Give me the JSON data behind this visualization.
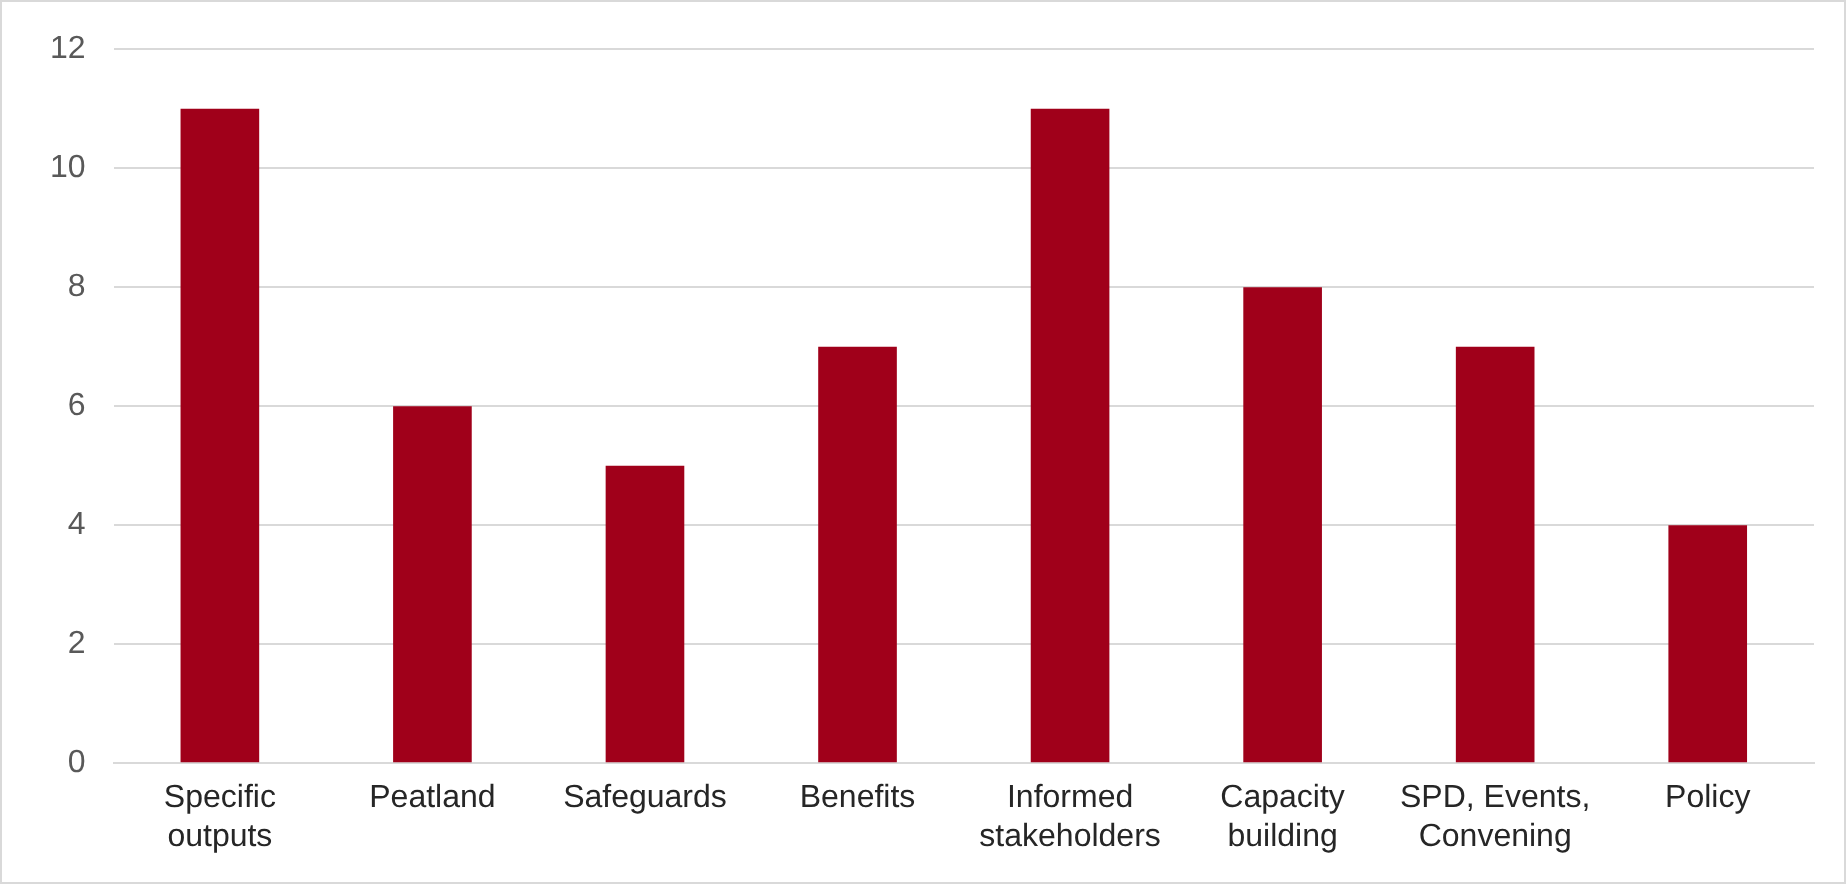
{
  "chart_data": {
    "type": "bar",
    "categories": [
      "Specific outputs",
      "Peatland",
      "Safeguards",
      "Benefits",
      "Informed stakeholders",
      "Capacity building",
      "SPD, Events, Convening",
      "Policy"
    ],
    "values": [
      11,
      6,
      5,
      7,
      11,
      8,
      7,
      4
    ],
    "color": "#a0001a",
    "ylim": [
      0,
      12
    ],
    "yticks": [
      0,
      2,
      4,
      6,
      8,
      10,
      12
    ],
    "grid": "y",
    "legend": false
  }
}
